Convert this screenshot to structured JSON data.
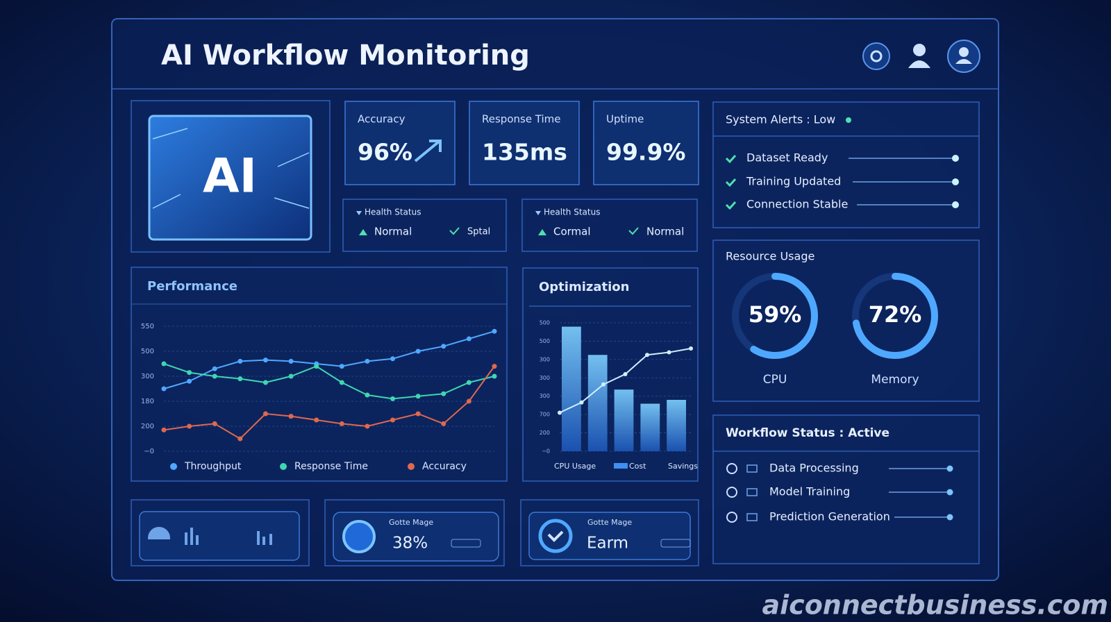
{
  "header": {
    "title": "AI Workflow Monitoring"
  },
  "ai_badge": "AI",
  "metrics": [
    {
      "label": "Accuracy",
      "value": "96%"
    },
    {
      "label": "Response Time",
      "value": "135ms"
    },
    {
      "label": "Uptime",
      "value": "99.9%"
    }
  ],
  "health": [
    {
      "title": "Health Status",
      "items": [
        "Normal",
        "Sptal"
      ]
    },
    {
      "title": "Health Status",
      "items": [
        "Cormal",
        "Normal"
      ]
    }
  ],
  "alerts": {
    "title": "System Alerts : Low",
    "items": [
      "Dataset Ready",
      "Training Updated",
      "Connection Stable"
    ]
  },
  "resources": {
    "title": "Resource Usage",
    "gauges": [
      {
        "label": "CPU",
        "value": 59,
        "value_label": "59%"
      },
      {
        "label": "Memory",
        "value": 72,
        "value_label": "72%"
      }
    ]
  },
  "performance": {
    "title": "Performance",
    "y_labels": [
      "550",
      "500",
      "300",
      "180",
      "200",
      "−0"
    ],
    "ylim": [
      0,
      100
    ],
    "series": [
      {
        "name": "Throughput",
        "color": "#4fa8ff",
        "values": [
          50,
          56,
          66,
          72,
          73,
          72,
          70,
          68,
          72,
          74,
          80,
          84,
          90,
          96
        ]
      },
      {
        "name": "Response Time",
        "color": "#3fd6b0",
        "values": [
          70,
          63,
          60,
          58,
          55,
          60,
          68,
          55,
          45,
          42,
          44,
          46,
          55,
          60
        ]
      },
      {
        "name": "Accuracy",
        "color": "#e0684e",
        "values": [
          17,
          20,
          22,
          10,
          30,
          28,
          25,
          22,
          20,
          25,
          30,
          22,
          40,
          68
        ]
      }
    ]
  },
  "optimization": {
    "title": "Optimization",
    "y_labels": [
      "500",
      "500",
      "300",
      "300",
      "300",
      "700",
      "200",
      "−0"
    ],
    "ylim": [
      0,
      100
    ],
    "bars": [
      97,
      75,
      48,
      37,
      40
    ],
    "line": [
      30,
      38,
      52,
      60,
      75,
      77,
      80
    ],
    "legend": [
      "CPU Usage",
      "Cost",
      "Savings"
    ]
  },
  "workflow": {
    "title": "Workflow Status : Active",
    "items": [
      "Data Processing",
      "Model Training",
      "Prediction Generation"
    ]
  },
  "bottom": [
    {
      "label": "Gotte Mage",
      "value": "38%"
    },
    {
      "label": "Gotte Mage",
      "value": "Earm"
    }
  ],
  "watermark": "aiconnectbusiness.com"
}
